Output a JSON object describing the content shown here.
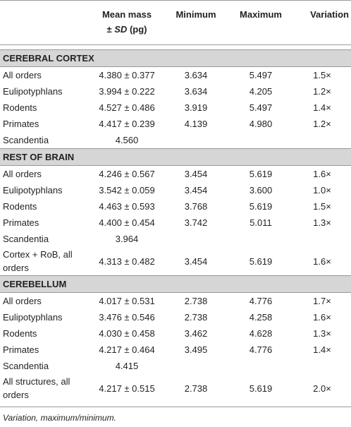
{
  "table": {
    "header": {
      "mean": {
        "line1": "Mean mass",
        "pm": "±",
        "sd": "SD",
        "unit": "(pg)"
      },
      "min": "Minimum",
      "max": "Maximum",
      "variation": "Variation"
    },
    "sections": [
      {
        "title": "CEREBRAL CORTEX",
        "rows": [
          {
            "label": "All orders",
            "mean": "4.380 ± 0.377",
            "min": "3.634",
            "max": "5.497",
            "variation": "1.5×"
          },
          {
            "label": "Eulipotyphlans",
            "mean": "3.994 ± 0.222",
            "min": "3.634",
            "max": "4.205",
            "variation": "1.2×"
          },
          {
            "label": "Rodents",
            "mean": "4.527 ± 0.486",
            "min": "3.919",
            "max": "5.497",
            "variation": "1.4×"
          },
          {
            "label": "Primates",
            "mean": "4.417 ± 0.239",
            "min": "4.139",
            "max": "4.980",
            "variation": "1.2×"
          },
          {
            "label": "Scandentia",
            "mean": "4.560"
          }
        ]
      },
      {
        "title": "REST OF BRAIN",
        "rows": [
          {
            "label": "All orders",
            "mean": "4.246 ± 0.567",
            "min": "3.454",
            "max": "5.619",
            "variation": "1.6×"
          },
          {
            "label": "Eulipotyphlans",
            "mean": "3.542 ± 0.059",
            "min": "3.454",
            "max": "3.600",
            "variation": "1.0×"
          },
          {
            "label": "Rodents",
            "mean": "4.463 ± 0.593",
            "min": "3.768",
            "max": "5.619",
            "variation": "1.5×"
          },
          {
            "label": "Primates",
            "mean": "4.400 ± 0.454",
            "min": "3.742",
            "max": "5.011",
            "variation": "1.3×"
          },
          {
            "label": "Scandentia",
            "mean": "3.964"
          },
          {
            "label": "Cortex + RoB, all orders",
            "mean": "4.313 ± 0.482",
            "min": "3.454",
            "max": "5.619",
            "variation": "1.6×"
          }
        ]
      },
      {
        "title": "CEREBELLUM",
        "rows": [
          {
            "label": "All orders",
            "mean": "4.017 ± 0.531",
            "min": "2.738",
            "max": "4.776",
            "variation": "1.7×"
          },
          {
            "label": "Eulipotyphlans",
            "mean": "3.476 ± 0.546",
            "min": "2.738",
            "max": "4.258",
            "variation": "1.6×"
          },
          {
            "label": "Rodents",
            "mean": "4.030 ± 0.458",
            "min": "3.462",
            "max": "4.628",
            "variation": "1.3×"
          },
          {
            "label": "Primates",
            "mean": "4.217 ± 0.464",
            "min": "3.495",
            "max": "4.776",
            "variation": "1.4×"
          },
          {
            "label": "Scandentia",
            "mean": "4.415"
          },
          {
            "label": "All structures, all orders",
            "mean": "4.217 ± 0.515",
            "min": "2.738",
            "max": "5.619",
            "variation": "2.0×"
          }
        ]
      }
    ],
    "footnote": "Variation, maximum/minimum."
  }
}
